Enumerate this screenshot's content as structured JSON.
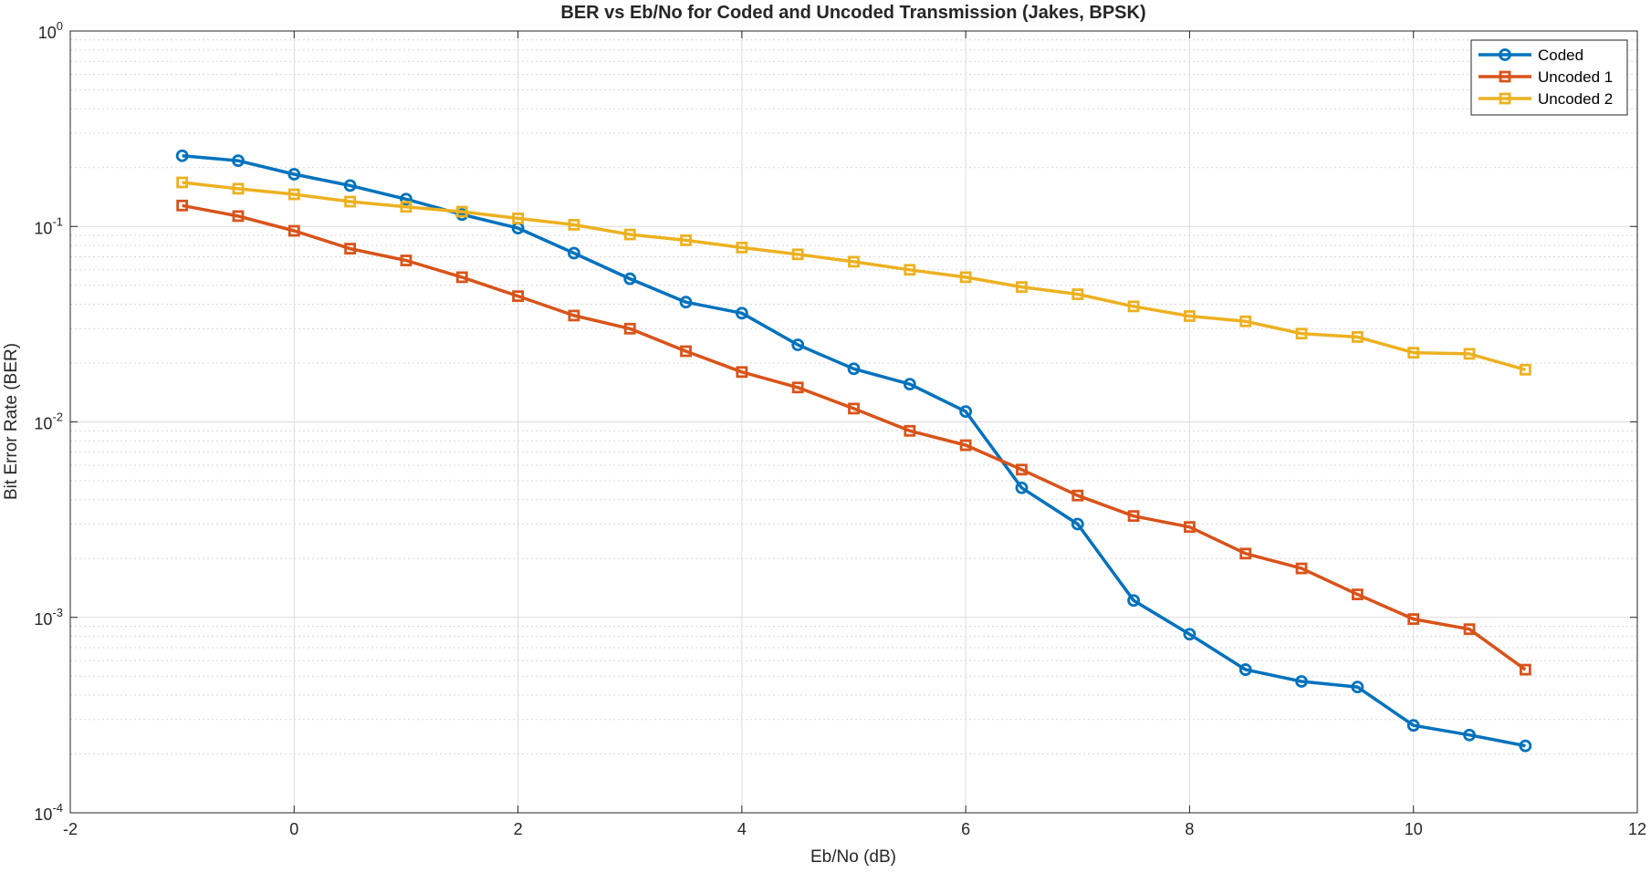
{
  "chart_data": {
    "type": "line",
    "title": "BER vs Eb/No for Coded and Uncoded Transmission (Jakes, BPSK)",
    "xlabel": "Eb/No (dB)",
    "ylabel": "Bit Error Rate (BER)",
    "xlim": [
      -2,
      12
    ],
    "ylim": [
      0.0001,
      1
    ],
    "yscale": "log",
    "grid": true,
    "legend_position": "top-right",
    "x_ticks": [
      "-2",
      "0",
      "2",
      "4",
      "6",
      "8",
      "10",
      "12"
    ],
    "y_ticks": [
      {
        "base": "10",
        "exp": "-4",
        "value": 0.0001
      },
      {
        "base": "10",
        "exp": "-3",
        "value": 0.001
      },
      {
        "base": "10",
        "exp": "-2",
        "value": 0.01
      },
      {
        "base": "10",
        "exp": "-1",
        "value": 0.1
      },
      {
        "base": "10",
        "exp": "0",
        "value": 1
      }
    ],
    "x": [
      -1,
      -0.5,
      0,
      0.5,
      1,
      1.5,
      2,
      2.5,
      3,
      3.5,
      4,
      4.5,
      5,
      5.5,
      6,
      6.5,
      7,
      7.5,
      8,
      8.5,
      9,
      9.5,
      10,
      10.5,
      11
    ],
    "series": [
      {
        "name": "Coded",
        "color": "#0072BD",
        "marker": "circle",
        "values": [
          0.23,
          0.217,
          0.185,
          0.162,
          0.138,
          0.115,
          0.098,
          0.073,
          0.054,
          0.041,
          0.036,
          0.0248,
          0.0187,
          0.0156,
          0.0113,
          0.0046,
          0.003,
          0.00122,
          0.00082,
          0.00054,
          0.00047,
          0.00044,
          0.00028,
          0.00025,
          0.00022
        ]
      },
      {
        "name": "Uncoded 1",
        "color": "#D95319",
        "marker": "square",
        "values": [
          0.128,
          0.113,
          0.095,
          0.077,
          0.067,
          0.055,
          0.044,
          0.035,
          0.03,
          0.023,
          0.018,
          0.015,
          0.0117,
          0.009,
          0.0076,
          0.0057,
          0.0042,
          0.0033,
          0.0029,
          0.00212,
          0.00178,
          0.00131,
          0.00098,
          0.00087,
          0.00054
        ]
      },
      {
        "name": "Uncoded 2",
        "color": "#EDB120",
        "marker": "square",
        "values": [
          0.168,
          0.156,
          0.146,
          0.134,
          0.126,
          0.119,
          0.11,
          0.102,
          0.091,
          0.085,
          0.078,
          0.072,
          0.066,
          0.06,
          0.055,
          0.049,
          0.045,
          0.039,
          0.0348,
          0.0327,
          0.0283,
          0.0272,
          0.0226,
          0.0223,
          0.0185
        ]
      }
    ]
  }
}
